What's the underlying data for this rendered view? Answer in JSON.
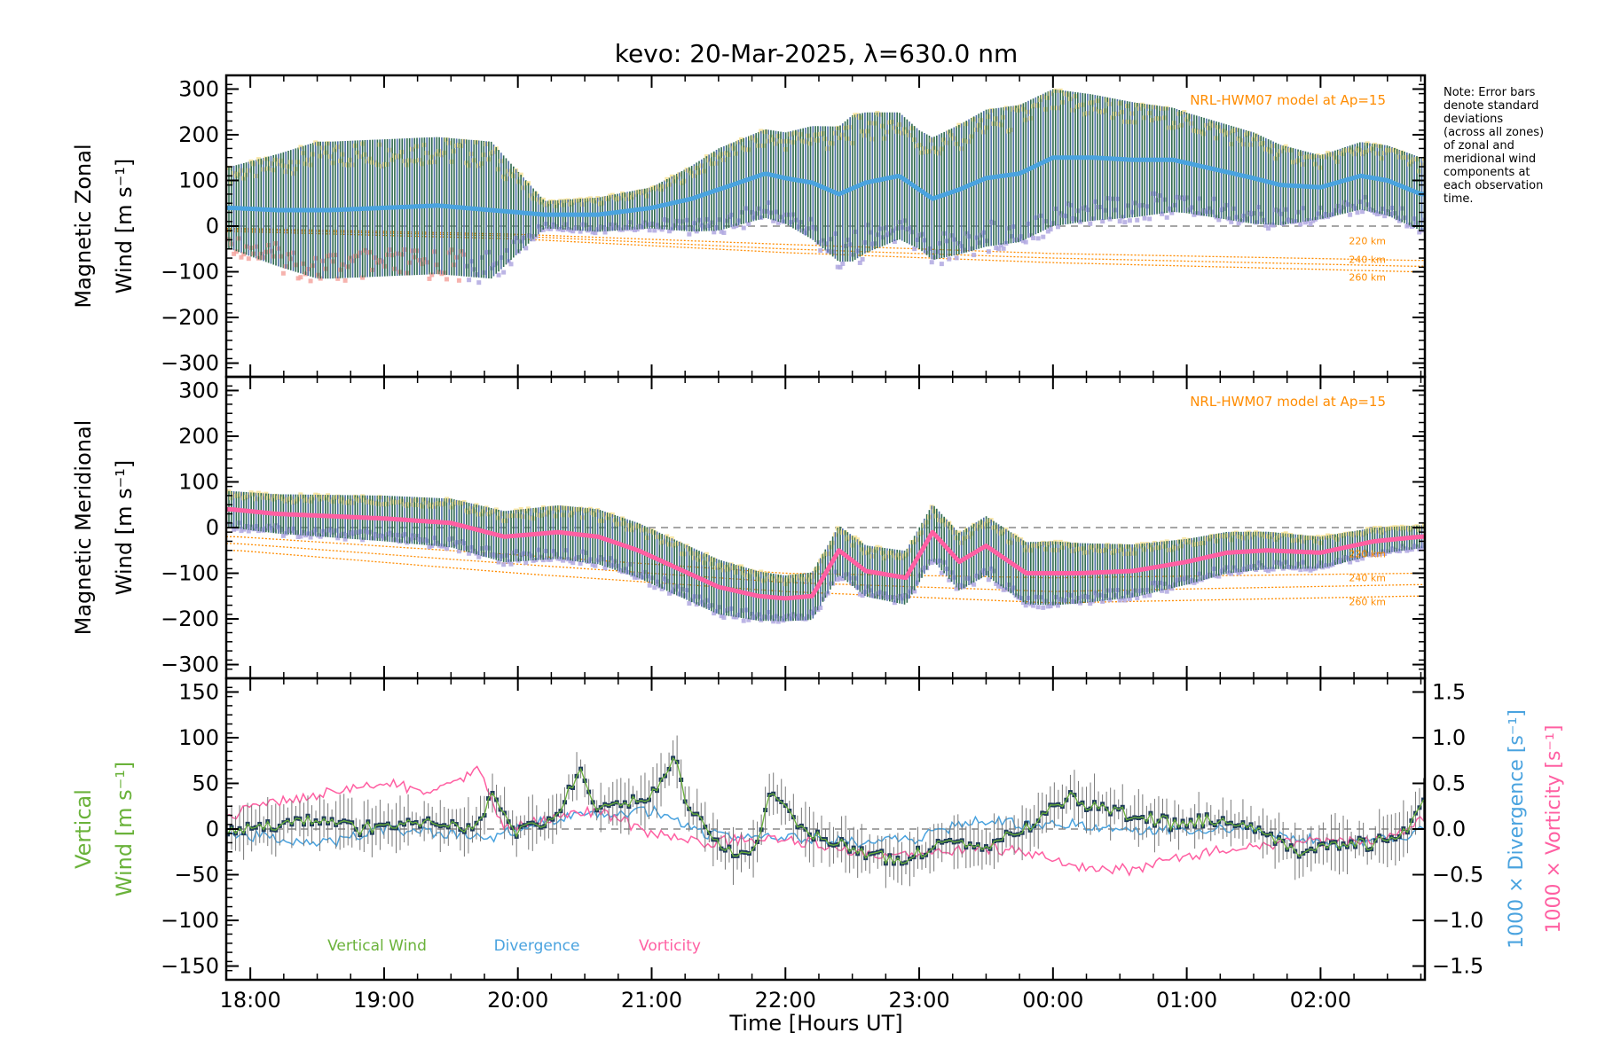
{
  "title": "kevo: 20-Mar-2025, λ=630.0 nm",
  "note": [
    "Note: Error bars",
    "denote standard",
    "deviations",
    "(across all zones)",
    "of zonal and",
    "meridional wind",
    "components at",
    "each observation",
    "time."
  ],
  "colors": {
    "axis": "#000000",
    "zonal_line": "#4aa3df",
    "meridional_line": "#ff5fa2",
    "errorbar": "#2f6b4f",
    "errorbar_alt": "#4f6fa8",
    "zone_hi": "#f7e39a",
    "zone_lo": "#b0a8e0",
    "zone_pink": "#f4a6a0",
    "model": "#ff8c00",
    "vertical": "#6ab23a",
    "divergence": "#4aa3df",
    "vorticity": "#ff5fa2",
    "vert_point": "#1f3b5a",
    "vert_err": "#777777",
    "zero": "#888888"
  },
  "x_axis": {
    "label": "Time [Hours UT]",
    "range_hours": [
      17.82,
      26.78
    ],
    "ticks": [
      {
        "h": 18,
        "label": "18:00"
      },
      {
        "h": 19,
        "label": "19:00"
      },
      {
        "h": 20,
        "label": "20:00"
      },
      {
        "h": 21,
        "label": "21:00"
      },
      {
        "h": 22,
        "label": "22:00"
      },
      {
        "h": 23,
        "label": "23:00"
      },
      {
        "h": 24,
        "label": "00:00"
      },
      {
        "h": 25,
        "label": "01:00"
      },
      {
        "h": 26,
        "label": "02:00"
      }
    ]
  },
  "chart_data": [
    {
      "type": "line",
      "panel": "zonal",
      "ylabel": [
        "Magnetic Zonal",
        "Wind [m s⁻¹]"
      ],
      "ylim": [
        -330,
        330
      ],
      "yticks": [
        300,
        200,
        100,
        0,
        -100,
        -200,
        -300
      ],
      "ytick_labels": [
        "300",
        "200",
        "100",
        "0",
        "−100",
        "−200",
        "−300"
      ],
      "model_label": "NRL-HWM07 model at Ap=15",
      "model_lines": [
        {
          "name": "220 km",
          "x": [
            17.9,
            20,
            22,
            24,
            26.7
          ],
          "y": [
            -5,
            -18,
            -40,
            -60,
            -75
          ]
        },
        {
          "name": "240 km",
          "x": [
            17.9,
            20,
            22,
            24,
            26.7
          ],
          "y": [
            -8,
            -22,
            -50,
            -70,
            -88
          ]
        },
        {
          "name": "260 km",
          "x": [
            17.9,
            20,
            22,
            24,
            26.7
          ],
          "y": [
            -12,
            -28,
            -58,
            -80,
            -100
          ]
        }
      ],
      "series": [
        {
          "name": "Zonal wind",
          "x": [
            17.85,
            18.2,
            18.6,
            19.0,
            19.4,
            19.8,
            20.2,
            20.6,
            21.0,
            21.3,
            21.6,
            21.85,
            22.0,
            22.2,
            22.4,
            22.6,
            22.85,
            23.1,
            23.3,
            23.5,
            23.75,
            24.0,
            24.3,
            24.6,
            24.9,
            25.2,
            25.5,
            25.7,
            26.0,
            26.3,
            26.5,
            26.75
          ],
          "y": [
            40,
            35,
            35,
            40,
            45,
            35,
            25,
            25,
            40,
            60,
            90,
            115,
            105,
            95,
            70,
            95,
            110,
            60,
            80,
            105,
            115,
            150,
            150,
            145,
            145,
            125,
            105,
            90,
            85,
            110,
            100,
            70
          ]
        },
        {
          "name": "Error half-width",
          "x": [
            17.85,
            18.5,
            19.0,
            19.8,
            20.2,
            21.0,
            21.5,
            22.0,
            22.5,
            23.0,
            23.5,
            24.0,
            24.5,
            25.0,
            25.5,
            26.0,
            26.75
          ],
          "y": [
            90,
            150,
            150,
            150,
            30,
            45,
            90,
            100,
            160,
            130,
            150,
            150,
            130,
            110,
            100,
            70,
            80
          ]
        }
      ]
    },
    {
      "type": "line",
      "panel": "meridional",
      "ylabel": [
        "Magnetic Meridional",
        "Wind [m s⁻¹]"
      ],
      "ylim": [
        -330,
        330
      ],
      "yticks": [
        300,
        200,
        100,
        0,
        -100,
        -200,
        -300
      ],
      "ytick_labels": [
        "300",
        "200",
        "100",
        "0",
        "−100",
        "−200",
        "−300"
      ],
      "model_label": "NRL-HWM07 model at Ap=15",
      "model_lines": [
        {
          "name": "220 km",
          "x": [
            17.9,
            20,
            22,
            24,
            26.7
          ],
          "y": [
            -20,
            -60,
            -100,
            -110,
            -100
          ]
        },
        {
          "name": "240 km",
          "x": [
            17.9,
            20,
            22,
            24,
            26.7
          ],
          "y": [
            -35,
            -80,
            -120,
            -140,
            -125
          ]
        },
        {
          "name": "260 km",
          "x": [
            17.9,
            20,
            22,
            24,
            26.7
          ],
          "y": [
            -50,
            -100,
            -140,
            -165,
            -150
          ]
        }
      ],
      "series": [
        {
          "name": "Meridional wind",
          "x": [
            17.85,
            18.2,
            18.6,
            19.0,
            19.5,
            19.9,
            20.3,
            20.6,
            20.9,
            21.2,
            21.5,
            21.8,
            22.0,
            22.2,
            22.4,
            22.6,
            22.9,
            23.1,
            23.3,
            23.5,
            23.8,
            24.2,
            24.6,
            25.0,
            25.3,
            25.6,
            26.0,
            26.4,
            26.75
          ],
          "y": [
            40,
            30,
            25,
            20,
            10,
            -20,
            -10,
            -20,
            -50,
            -90,
            -130,
            -150,
            -155,
            -150,
            -50,
            -95,
            -110,
            -10,
            -75,
            -40,
            -100,
            -100,
            -95,
            -75,
            -55,
            -50,
            -55,
            -30,
            -20
          ]
        },
        {
          "name": "Error half-width",
          "x": [
            17.85,
            19.0,
            20.5,
            21.5,
            22.0,
            23.0,
            24.0,
            25.0,
            26.0,
            26.75
          ],
          "y": [
            40,
            50,
            60,
            60,
            50,
            60,
            70,
            50,
            35,
            25
          ]
        }
      ]
    },
    {
      "type": "line",
      "panel": "vertical",
      "ylabel": [
        "Vertical",
        "Wind [m s⁻¹]"
      ],
      "ylim": [
        -165,
        165
      ],
      "yticks": [
        150,
        100,
        50,
        0,
        -50,
        -100,
        -150
      ],
      "ytick_labels": [
        "150",
        "100",
        "50",
        "0",
        "−50",
        "−100",
        "−150"
      ],
      "y2lim": [
        -1.65,
        1.65
      ],
      "y2ticks": [
        1.5,
        1.0,
        0.5,
        0.0,
        -0.5,
        -1.0,
        -1.5
      ],
      "y2tick_labels": [
        "1.5",
        "1.0",
        "0.5",
        "0.0",
        "−0.5",
        "−1.0",
        "−1.5"
      ],
      "y2label_divergence": "1000 × Divergence [s⁻¹]",
      "y2label_vorticity": "1000 × Vorticity [s⁻¹]",
      "legend": [
        "Vertical Wind",
        "Divergence",
        "Vorticity"
      ],
      "series": [
        {
          "name": "Vertical Wind",
          "x": [
            17.85,
            18.2,
            18.5,
            18.8,
            19.1,
            19.4,
            19.7,
            19.8,
            20.0,
            20.3,
            20.45,
            20.6,
            21.0,
            21.2,
            21.25,
            21.4,
            21.6,
            21.75,
            21.9,
            22.1,
            22.4,
            22.7,
            22.9,
            23.2,
            23.5,
            23.8,
            24.1,
            24.3,
            24.6,
            24.9,
            25.2,
            25.5,
            25.8,
            26.1,
            26.4,
            26.6,
            26.78
          ],
          "y": [
            -5,
            5,
            10,
            0,
            5,
            5,
            0,
            35,
            -5,
            15,
            65,
            20,
            35,
            80,
            30,
            0,
            -25,
            -30,
            40,
            0,
            -15,
            -30,
            -35,
            -10,
            -20,
            0,
            35,
            25,
            15,
            5,
            10,
            5,
            -25,
            -20,
            -15,
            -10,
            30
          ]
        },
        {
          "name": "Divergence",
          "x": [
            17.85,
            18.2,
            18.6,
            19.0,
            19.4,
            19.8,
            20.2,
            20.6,
            21.0,
            21.4,
            21.8,
            22.2,
            22.6,
            23.0,
            23.4,
            23.8,
            24.2,
            24.6,
            25.0,
            25.4,
            25.8,
            26.2,
            26.6,
            26.78
          ],
          "y": [
            -0.05,
            -0.1,
            -0.15,
            0.0,
            -0.05,
            -0.1,
            0.1,
            0.15,
            0.2,
            -0.05,
            -0.1,
            -0.1,
            -0.15,
            -0.1,
            0.1,
            0.05,
            0.05,
            0.0,
            0.0,
            0.0,
            -0.1,
            -0.15,
            -0.1,
            0.0
          ]
        },
        {
          "name": "Vorticity",
          "x": [
            17.85,
            18.2,
            18.6,
            19.0,
            19.4,
            19.7,
            19.9,
            20.2,
            20.6,
            21.0,
            21.4,
            21.8,
            22.2,
            22.6,
            23.0,
            23.4,
            23.8,
            24.2,
            24.6,
            25.0,
            25.4,
            25.8,
            26.2,
            26.5,
            26.78
          ],
          "y": [
            0.15,
            0.3,
            0.4,
            0.5,
            0.4,
            0.65,
            0.0,
            0.1,
            0.2,
            -0.05,
            -0.15,
            -0.1,
            -0.15,
            -0.3,
            -0.3,
            -0.2,
            -0.25,
            -0.4,
            -0.45,
            -0.3,
            -0.2,
            -0.15,
            -0.15,
            -0.1,
            0.1
          ]
        }
      ]
    }
  ]
}
